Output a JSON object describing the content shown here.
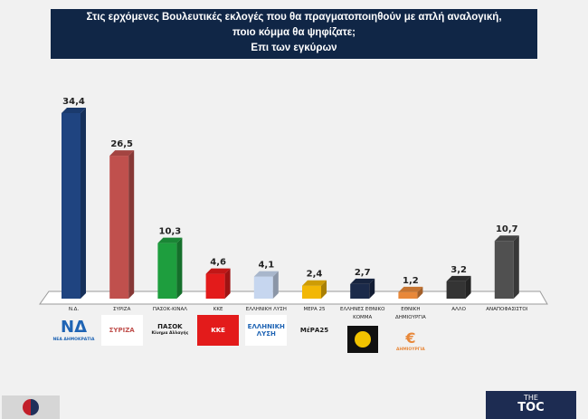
{
  "header": {
    "title_lines": [
      "Στις ερχόμενες Βουλευτικές εκλογές που θα πραγματοποιηθούν με απλή αναλογική,",
      "ποιο κόμμα θα ψηφίζατε;",
      "Επι των εγκύρων"
    ]
  },
  "chart_data": {
    "type": "bar",
    "title": "Στις ερχόμενες Βουλευτικές εκλογές που θα πραγματοποιηθούν με απλή αναλογική, ποιο κόμμα θα ψηφίζατε; Επι των εγκύρων",
    "categories": [
      "Ν.Δ.",
      "ΣΥΡΙΖΑ",
      "ΠΑΣΟΚ-ΚΙΝΑΛ",
      "ΚΚΕ",
      "ΕΛΛΗΝΙΚΗ ΛΥΣΗ",
      "ΜΕΡΑ 25",
      "ΕΛΛΗΝΕΣ ΕΘΝΙΚΟ ΚΟΜΜΑ",
      "ΕΘΝΙΚΗ ΔΗΜΙΟΥΡΓΙΑ",
      "ΑΛΛΟ",
      "ΑΝΑΠΟΦΑΣΙΣΤΟΙ"
    ],
    "category_lines": [
      [
        "Ν.Δ."
      ],
      [
        "ΣΥΡΙΖΑ"
      ],
      [
        "ΠΑΣΟΚ-ΚΙΝΑΛ"
      ],
      [
        "ΚΚΕ"
      ],
      [
        "ΕΛΛΗΝΙΚΗ ΛΥΣΗ"
      ],
      [
        "ΜΕΡΑ 25"
      ],
      [
        "ΕΛΛΗΝΕΣ ΕΘΝΙΚΟ",
        "ΚΟΜΜΑ"
      ],
      [
        "ΕΘΝΙΚΗ",
        "ΔΗΜΙΟΥΡΓΙΑ"
      ],
      [
        "ΑΛΛΟ"
      ],
      [
        "ΑΝΑΠΟΦΑΣΙΣΤΟΙ"
      ]
    ],
    "values": [
      34.4,
      26.5,
      10.3,
      4.6,
      4.1,
      2.4,
      2.7,
      1.2,
      3.2,
      10.7
    ],
    "data_labels": [
      "34,4",
      "26,5",
      "10,3",
      "4,6",
      "4,1",
      "2,4",
      "2,7",
      "1,2",
      "3,2",
      "10,7"
    ],
    "colors": [
      "#1f4480",
      "#c0504d",
      "#1e9e3e",
      "#e31b1b",
      "#c6d6ef",
      "#f2b705",
      "#1b2a4a",
      "#e8883a",
      "#343434",
      "#505050"
    ],
    "ylim": [
      0,
      36
    ],
    "grid": false,
    "legend": "none",
    "style": "3d-column"
  },
  "logos": [
    {
      "text": "ΝΔ",
      "sub": "ΝΕΑ ΔΗΜΟΚΡΑΤΙΑ",
      "color": "#1f64b4",
      "bg": "transparent"
    },
    {
      "text": "ΣΥΡΙΖΑ",
      "sub": "",
      "color": "#c0504d",
      "bg": "#ffffff"
    },
    {
      "text": "ΠΑΣΟΚ",
      "sub": "Κίνημα Αλλαγής",
      "color": "#1a1a1a",
      "bg": "transparent"
    },
    {
      "text": "ΚΚΕ",
      "sub": "",
      "color": "#ffffff",
      "bg": "#e31b1b"
    },
    {
      "text": "ΕΛΛΗΝΙΚΗ ΛΥΣΗ",
      "sub": "",
      "color": "#1f64b4",
      "bg": "#ffffff"
    },
    {
      "text": "ΜέΡΑ25",
      "sub": "",
      "color": "#1a1a1a",
      "bg": "transparent"
    },
    {
      "text": "",
      "sub": "",
      "color": "#f2c300",
      "bg": "#111111"
    },
    {
      "text": "€",
      "sub": "ΔΗΜΙΟΥΡΓΙΑ",
      "color": "#e8883a",
      "bg": "transparent"
    }
  ],
  "branding": {
    "line1": "THE",
    "line2": "TOC"
  }
}
